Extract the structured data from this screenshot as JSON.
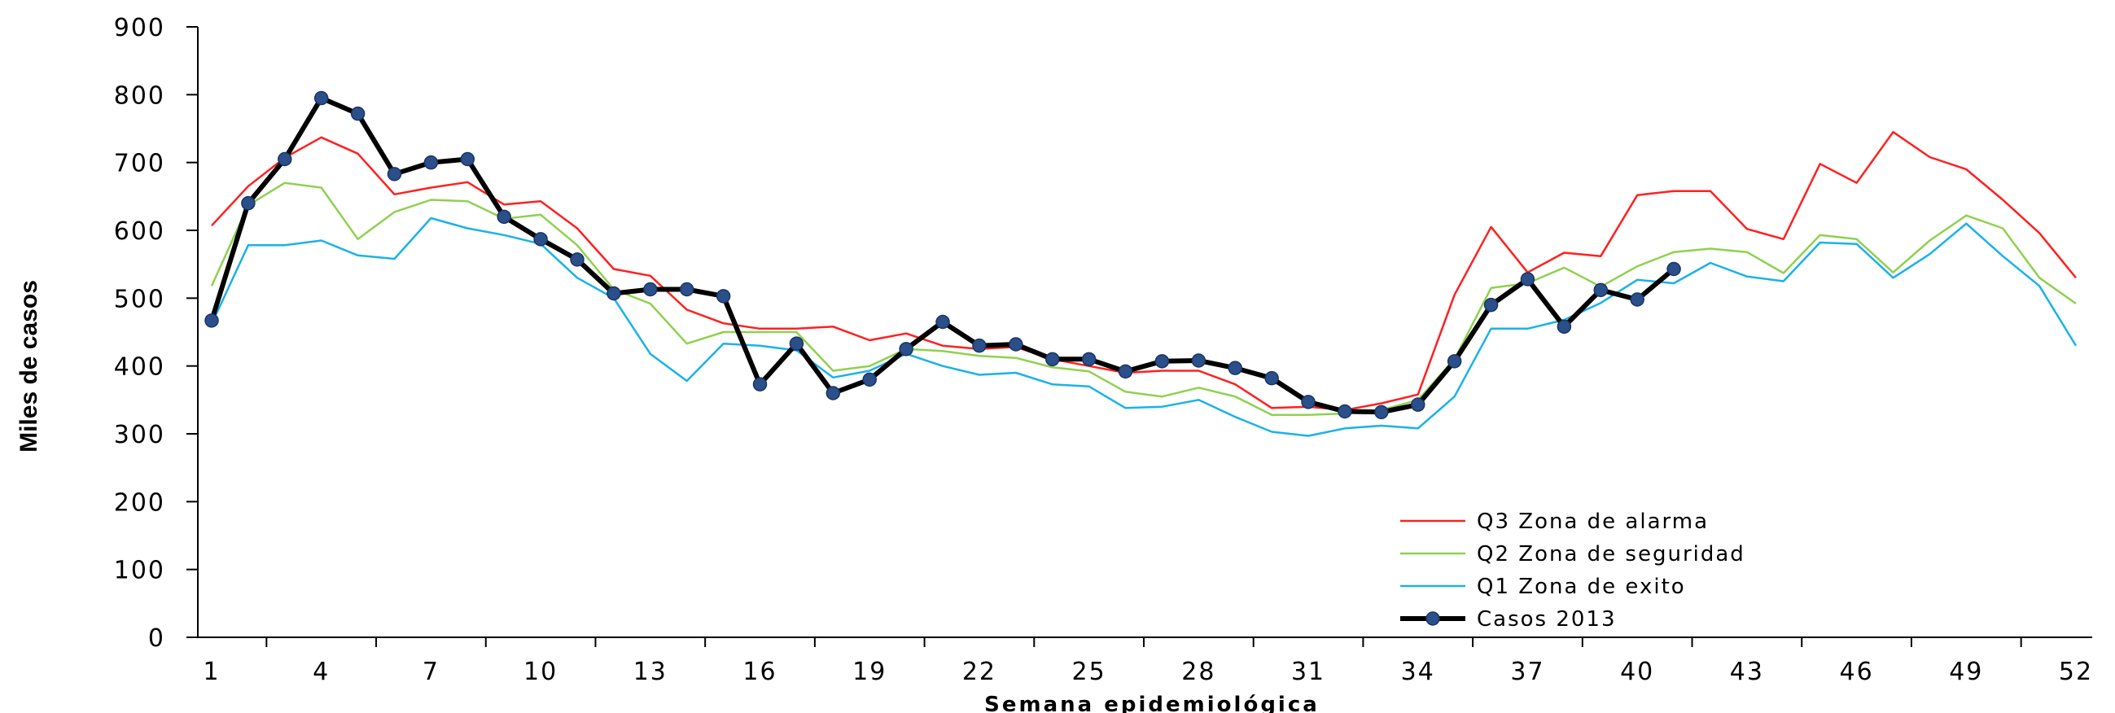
{
  "chart_data": {
    "type": "line",
    "title": "",
    "xlabel": "Semana epidemiológica",
    "ylabel": "Miles de casos",
    "ylim": [
      0,
      900
    ],
    "yticks": [
      0,
      100,
      200,
      300,
      400,
      500,
      600,
      700,
      800,
      900
    ],
    "xlim": [
      1,
      52
    ],
    "xticks": [
      1,
      4,
      7,
      10,
      13,
      16,
      19,
      22,
      25,
      28,
      31,
      34,
      37,
      40,
      43,
      46,
      49,
      52
    ],
    "grid": false,
    "legend": "bottom-right",
    "x": [
      1,
      2,
      3,
      4,
      5,
      6,
      7,
      8,
      9,
      10,
      11,
      12,
      13,
      14,
      15,
      16,
      17,
      18,
      19,
      20,
      21,
      22,
      23,
      24,
      25,
      26,
      27,
      28,
      29,
      30,
      31,
      32,
      33,
      34,
      35,
      36,
      37,
      38,
      39,
      40,
      41,
      42,
      43,
      44,
      45,
      46,
      47,
      48,
      49,
      50,
      51,
      52
    ],
    "series": [
      {
        "name": "Q3 Zona de alarma",
        "color": "#ff2020",
        "values": [
          607,
          665,
          707,
          737,
          713,
          653,
          663,
          671,
          638,
          643,
          603,
          543,
          533,
          483,
          463,
          455,
          455,
          458,
          438,
          448,
          430,
          425,
          428,
          410,
          400,
          390,
          393,
          393,
          373,
          338,
          340,
          335,
          345,
          358,
          505,
          605,
          538,
          567,
          562,
          652,
          658,
          658,
          602,
          587,
          698,
          670,
          745,
          708,
          690,
          645,
          596,
          530
        ]
      },
      {
        "name": "Q2 Zona de seguridad",
        "color": "#8fd14f",
        "values": [
          518,
          637,
          670,
          663,
          587,
          627,
          645,
          643,
          617,
          623,
          578,
          513,
          492,
          433,
          450,
          450,
          450,
          393,
          400,
          425,
          422,
          415,
          412,
          398,
          392,
          362,
          355,
          368,
          355,
          328,
          328,
          330,
          335,
          350,
          410,
          515,
          522,
          545,
          517,
          547,
          568,
          573,
          568,
          537,
          593,
          587,
          538,
          585,
          622,
          603,
          530,
          492
        ]
      },
      {
        "name": "Q1 Zona de exito",
        "color": "#1ab2e8",
        "values": [
          462,
          578,
          578,
          585,
          563,
          558,
          618,
          603,
          593,
          580,
          530,
          500,
          418,
          378,
          433,
          430,
          423,
          383,
          393,
          418,
          400,
          387,
          390,
          373,
          370,
          338,
          340,
          350,
          325,
          303,
          297,
          308,
          312,
          308,
          355,
          455,
          455,
          468,
          493,
          527,
          522,
          552,
          532,
          525,
          582,
          580,
          530,
          565,
          610,
          562,
          518,
          430
        ]
      },
      {
        "name": "Casos 2013",
        "color": "#000000",
        "values": [
          467,
          640,
          705,
          795,
          772,
          683,
          700,
          705,
          620,
          587,
          557,
          507,
          513,
          513,
          503,
          373,
          433,
          360,
          380,
          425,
          465,
          430,
          432,
          410,
          410,
          392,
          407,
          408,
          397,
          382,
          347,
          333,
          332,
          343,
          407,
          490,
          528,
          458,
          512,
          498,
          543,
          null,
          null,
          null,
          null,
          null,
          null,
          null,
          null,
          null,
          null,
          null
        ]
      }
    ]
  }
}
